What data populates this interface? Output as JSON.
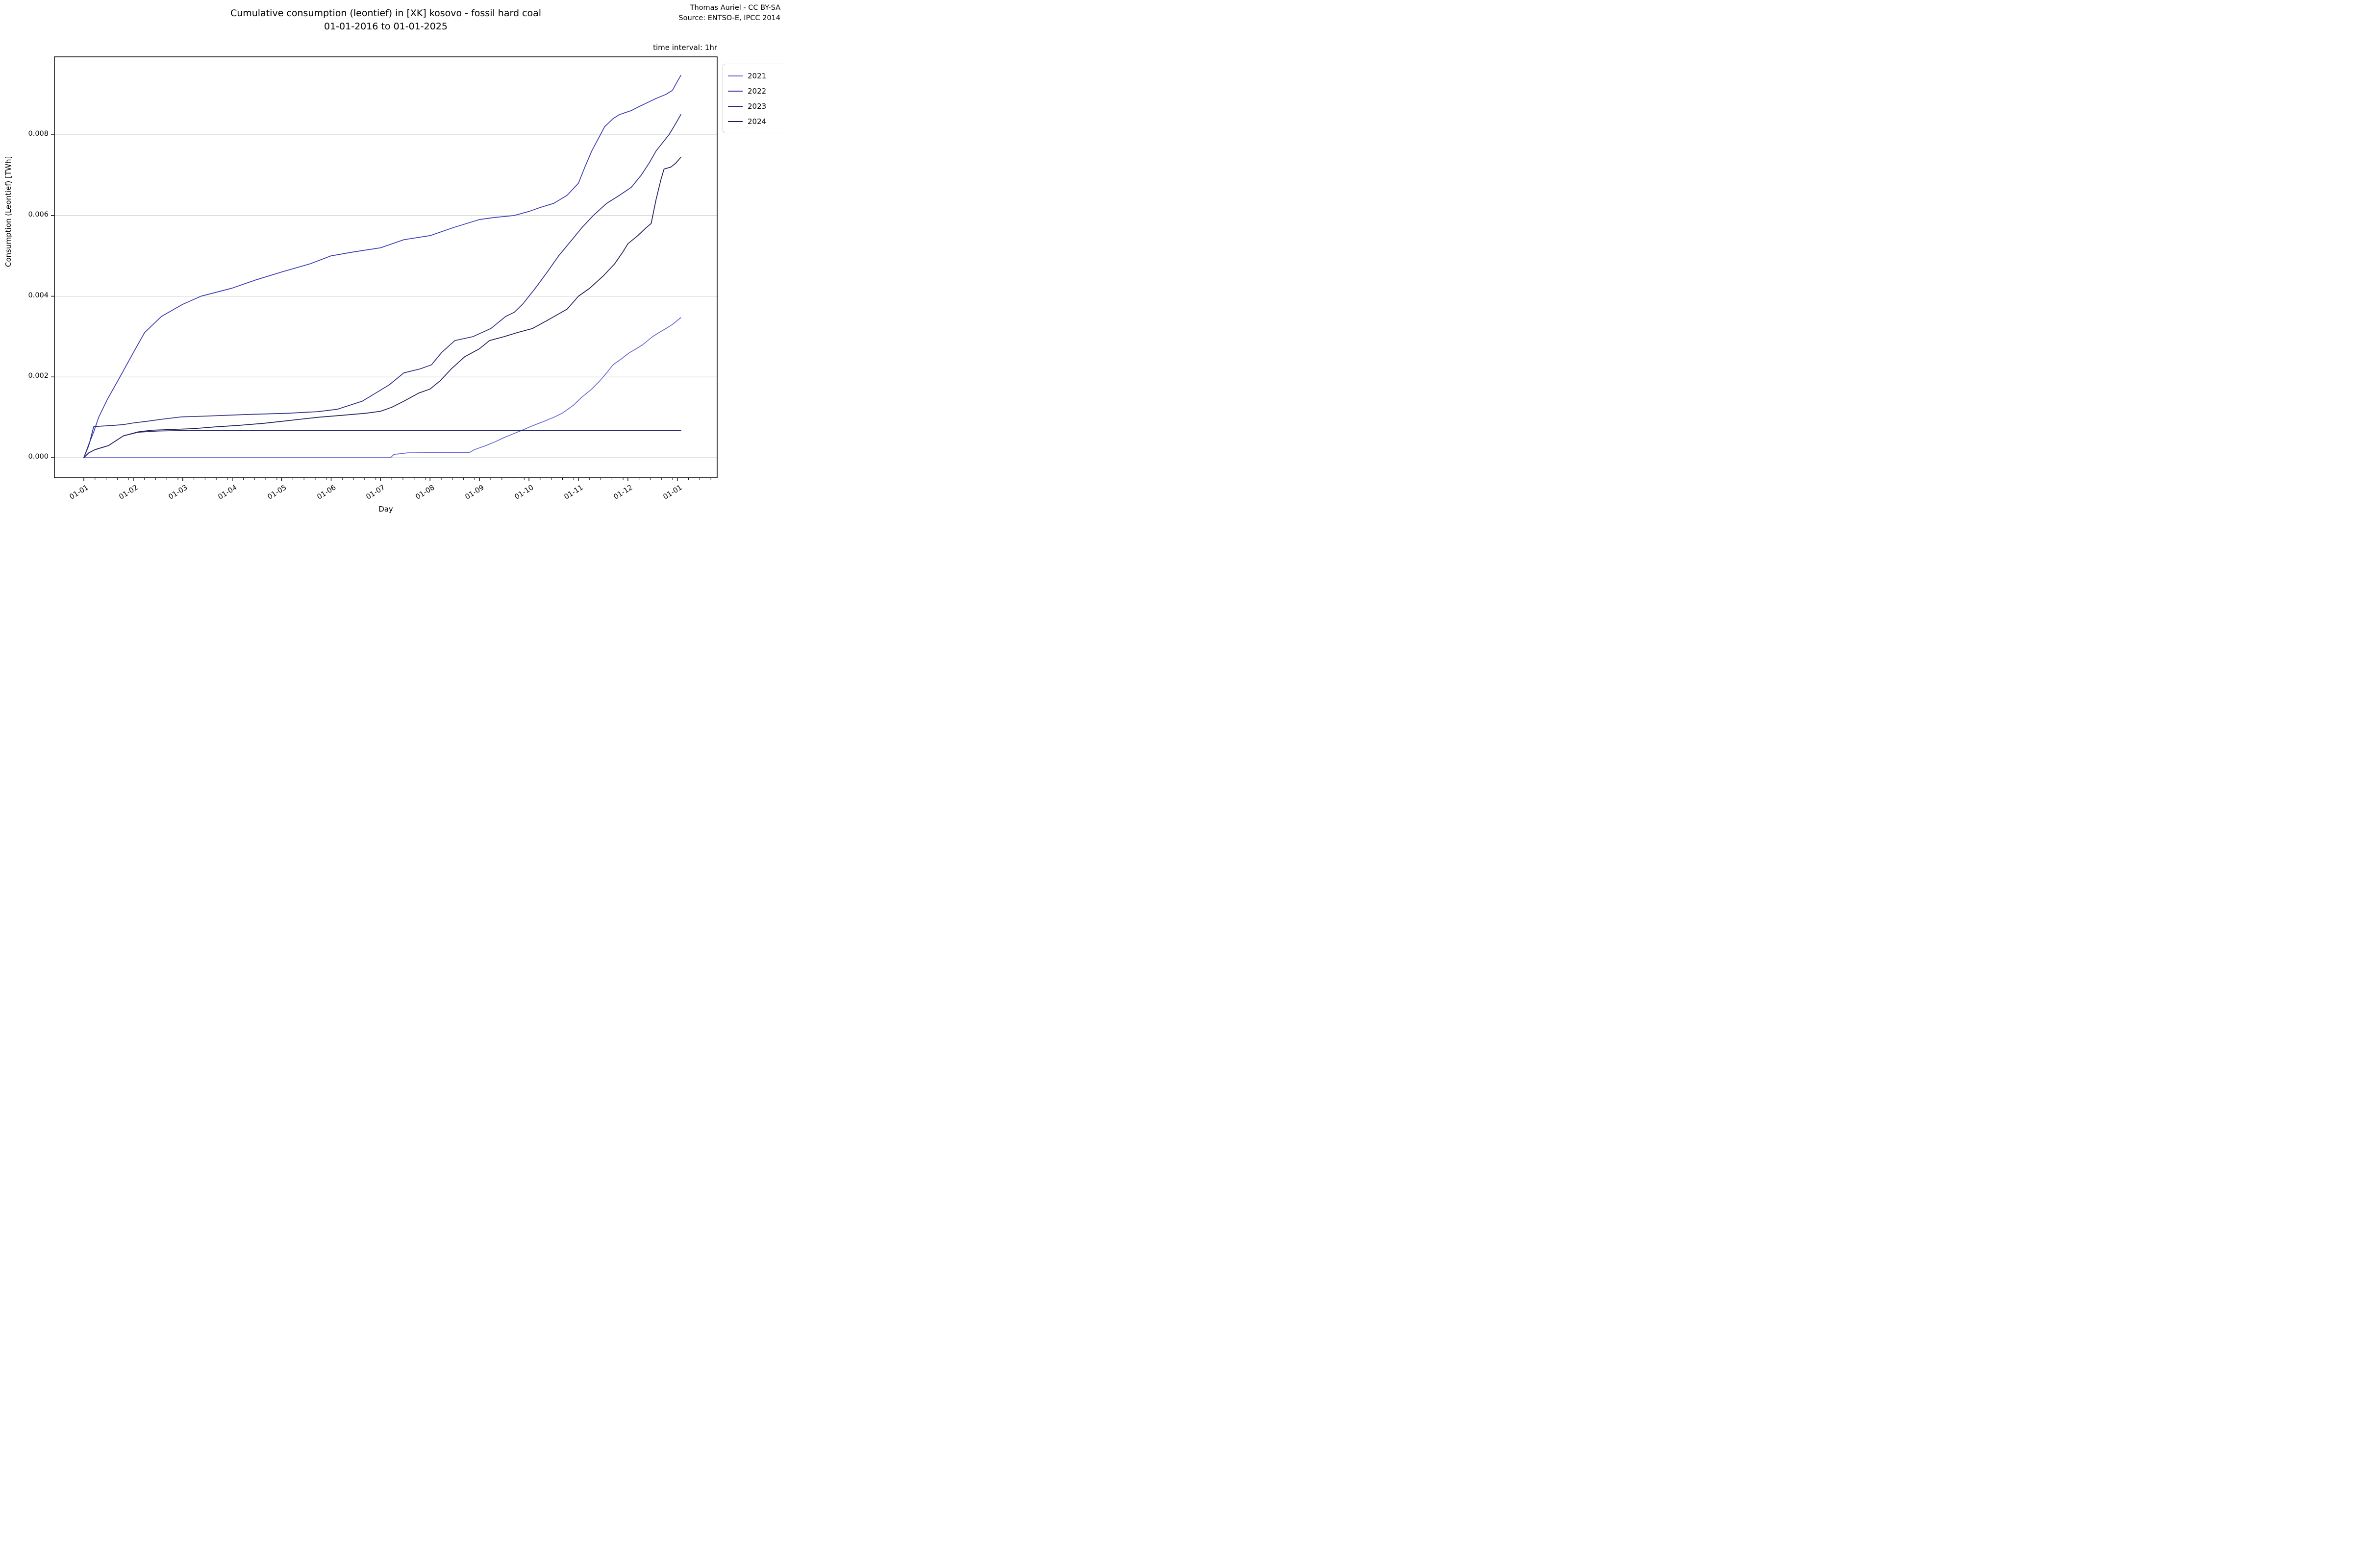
{
  "title": {
    "line1": "Cumulative consumption (leontief) in [XK] kosovo - fossil hard coal",
    "line2": "01-01-2016 to 01-01-2025"
  },
  "credit": {
    "line1": "Thomas Auriel - CC BY-SA",
    "line2": "Source: ENTSO-E, IPCC 2014"
  },
  "plot": {
    "time_interval_note": "time interval: 1hr",
    "x_axis_label": "Day",
    "y_axis_label": "Consumption (Leontief) [TWh]"
  },
  "legend": {
    "items": [
      {
        "label": "2021",
        "color": "#6a6ad4"
      },
      {
        "label": "2022",
        "color": "#383ab2"
      },
      {
        "label": "2023",
        "color": "#2b2d84"
      },
      {
        "label": "2024",
        "color": "#1d1e55"
      }
    ]
  },
  "chart_data": {
    "type": "line",
    "title": "Cumulative consumption (leontief) in [XK] kosovo - fossil hard coal 01-01-2016 to 01-01-2025",
    "xlabel": "Day",
    "ylabel": "Consumption (Leontief) [TWh]",
    "x_unit": "months_from_jan_1",
    "x_tick_labels": [
      "01-01",
      "01-02",
      "01-03",
      "01-04",
      "01-05",
      "01-06",
      "01-07",
      "01-08",
      "01-09",
      "01-10",
      "01-11",
      "01-12",
      "01-01"
    ],
    "y_ticks": [
      0.0,
      0.002,
      0.004,
      0.006,
      0.008
    ],
    "y_tick_labels": [
      "0.000",
      "0.002",
      "0.004",
      "0.006",
      "0.008"
    ],
    "ylim": [
      -0.00035,
      0.00995
    ],
    "xlim_months": [
      -0.58,
      12.73
    ],
    "grid": "horizontal",
    "legend_position": "outside-top-right",
    "grid_color": "#c9c9c9",
    "series": [
      {
        "name": "2021",
        "color": "#6a6ad4",
        "in_legend": true,
        "points": [
          [
            0,
            0
          ],
          [
            6.2,
            0
          ],
          [
            6.27,
            8e-05
          ],
          [
            6.55,
            0.00012
          ],
          [
            7.8,
            0.00013
          ],
          [
            7.9,
            0.0002
          ],
          [
            8.13,
            0.0003
          ],
          [
            8.33,
            0.0004
          ],
          [
            8.5,
            0.0005
          ],
          [
            8.7,
            0.0006
          ],
          [
            8.9,
            0.0007
          ],
          [
            9.03,
            0.00077
          ],
          [
            9.3,
            0.0009
          ],
          [
            9.5,
            0.001
          ],
          [
            9.67,
            0.0011
          ],
          [
            9.9,
            0.0013
          ],
          [
            10.07,
            0.0015
          ],
          [
            10.27,
            0.0017
          ],
          [
            10.43,
            0.0019
          ],
          [
            10.57,
            0.0021
          ],
          [
            10.7,
            0.0023
          ],
          [
            10.87,
            0.00245
          ],
          [
            11.03,
            0.0026
          ],
          [
            11.17,
            0.0027
          ],
          [
            11.3,
            0.0028
          ],
          [
            11.5,
            0.003
          ],
          [
            11.63,
            0.0031
          ],
          [
            11.77,
            0.0032
          ],
          [
            11.9,
            0.0033
          ],
          [
            12.07,
            0.00347
          ]
        ]
      },
      {
        "name": "2022",
        "color": "#383ab2",
        "in_legend": true,
        "points": [
          [
            0,
            0
          ],
          [
            0.1,
            0.00033
          ],
          [
            0.2,
            0.00064
          ],
          [
            0.3,
            0.001
          ],
          [
            0.47,
            0.00143
          ],
          [
            0.73,
            0.002
          ],
          [
            1.0,
            0.0026
          ],
          [
            1.23,
            0.0031
          ],
          [
            1.57,
            0.0035
          ],
          [
            2.0,
            0.0038
          ],
          [
            2.37,
            0.004
          ],
          [
            3.0,
            0.0042
          ],
          [
            3.47,
            0.0044
          ],
          [
            4.0,
            0.0046
          ],
          [
            4.57,
            0.0048
          ],
          [
            5.0,
            0.005
          ],
          [
            5.47,
            0.0051
          ],
          [
            6.0,
            0.0052
          ],
          [
            6.47,
            0.0054
          ],
          [
            7.0,
            0.0055
          ],
          [
            7.47,
            0.0057
          ],
          [
            8.0,
            0.0059
          ],
          [
            8.3,
            0.00595
          ],
          [
            8.7,
            0.006
          ],
          [
            9.0,
            0.0061
          ],
          [
            9.23,
            0.0062
          ],
          [
            9.5,
            0.0063
          ],
          [
            9.77,
            0.0065
          ],
          [
            10.0,
            0.0068
          ],
          [
            10.13,
            0.0072
          ],
          [
            10.27,
            0.0076
          ],
          [
            10.4,
            0.0079
          ],
          [
            10.53,
            0.0082
          ],
          [
            10.7,
            0.0084
          ],
          [
            10.83,
            0.0085
          ],
          [
            11.07,
            0.0086
          ],
          [
            11.23,
            0.0087
          ],
          [
            11.4,
            0.0088
          ],
          [
            11.57,
            0.0089
          ],
          [
            11.77,
            0.009
          ],
          [
            11.9,
            0.0091
          ],
          [
            11.99,
            0.0093
          ],
          [
            12.07,
            0.00947
          ]
        ]
      },
      {
        "name": "2023",
        "color": "#2b2d84",
        "in_legend": true,
        "points": [
          [
            0,
            0
          ],
          [
            0.1,
            0.0003
          ],
          [
            0.2,
            0.00077
          ],
          [
            0.6,
            0.0008
          ],
          [
            0.8,
            0.00082
          ],
          [
            1.0,
            0.00086
          ],
          [
            1.27,
            0.0009
          ],
          [
            1.57,
            0.00095
          ],
          [
            1.97,
            0.00101
          ],
          [
            2.47,
            0.00103
          ],
          [
            3.3,
            0.00107
          ],
          [
            4.13,
            0.0011
          ],
          [
            4.73,
            0.00114
          ],
          [
            5.13,
            0.0012
          ],
          [
            5.63,
            0.0014
          ],
          [
            5.9,
            0.0016
          ],
          [
            6.17,
            0.0018
          ],
          [
            6.47,
            0.0021
          ],
          [
            6.8,
            0.0022
          ],
          [
            7.03,
            0.0023
          ],
          [
            7.23,
            0.0026
          ],
          [
            7.5,
            0.0029
          ],
          [
            7.87,
            0.003
          ],
          [
            8.23,
            0.0032
          ],
          [
            8.53,
            0.0035
          ],
          [
            8.7,
            0.0036
          ],
          [
            8.87,
            0.0038
          ],
          [
            9.13,
            0.0042
          ],
          [
            9.37,
            0.0046
          ],
          [
            9.6,
            0.005
          ],
          [
            9.87,
            0.0054
          ],
          [
            10.07,
            0.0057
          ],
          [
            10.3,
            0.006
          ],
          [
            10.57,
            0.0063
          ],
          [
            10.83,
            0.0065
          ],
          [
            11.07,
            0.0067
          ],
          [
            11.27,
            0.007
          ],
          [
            11.43,
            0.0073
          ],
          [
            11.57,
            0.0076
          ],
          [
            11.7,
            0.0078
          ],
          [
            11.83,
            0.008
          ],
          [
            11.93,
            0.0082
          ],
          [
            12.07,
            0.0085
          ]
        ]
      },
      {
        "name": "2024",
        "color": "#1d1e55",
        "in_legend": true,
        "points": [
          [
            0,
            0
          ],
          [
            0.1,
            0.00012
          ],
          [
            0.23,
            0.0002
          ],
          [
            0.5,
            0.0003
          ],
          [
            0.8,
            0.00054
          ],
          [
            1.1,
            0.00064
          ],
          [
            1.37,
            0.00068
          ],
          [
            1.8,
            0.0007
          ],
          [
            2.23,
            0.00072
          ],
          [
            2.63,
            0.00076
          ],
          [
            3.13,
            0.0008
          ],
          [
            3.63,
            0.00085
          ],
          [
            4.0,
            0.0009
          ],
          [
            4.37,
            0.00095
          ],
          [
            4.73,
            0.001
          ],
          [
            5.23,
            0.00105
          ],
          [
            5.7,
            0.0011
          ],
          [
            6.0,
            0.00115
          ],
          [
            6.23,
            0.00125
          ],
          [
            6.47,
            0.0014
          ],
          [
            6.77,
            0.0016
          ],
          [
            7.0,
            0.0017
          ],
          [
            7.2,
            0.0019
          ],
          [
            7.43,
            0.0022
          ],
          [
            7.7,
            0.0025
          ],
          [
            8.0,
            0.0027
          ],
          [
            8.2,
            0.0029
          ],
          [
            8.5,
            0.003
          ],
          [
            8.77,
            0.0031
          ],
          [
            9.07,
            0.0032
          ],
          [
            9.37,
            0.0034
          ],
          [
            9.77,
            0.00368
          ],
          [
            10.0,
            0.004
          ],
          [
            10.23,
            0.0042
          ],
          [
            10.5,
            0.0045
          ],
          [
            10.73,
            0.0048
          ],
          [
            10.9,
            0.0051
          ],
          [
            11.0,
            0.0053
          ],
          [
            11.2,
            0.0055
          ],
          [
            11.37,
            0.0057
          ],
          [
            11.47,
            0.0058
          ],
          [
            11.57,
            0.0064
          ],
          [
            11.67,
            0.0069
          ],
          [
            11.73,
            0.00715
          ],
          [
            11.87,
            0.0072
          ],
          [
            11.97,
            0.0073
          ],
          [
            12.07,
            0.00744
          ]
        ]
      },
      {
        "name": "unlabeled-flat",
        "color": "#24256a",
        "in_legend": false,
        "points": [
          [
            0,
            0
          ],
          [
            0.1,
            0.00012
          ],
          [
            0.23,
            0.0002
          ],
          [
            0.5,
            0.0003
          ],
          [
            0.8,
            0.00054
          ],
          [
            1.1,
            0.00063
          ],
          [
            1.5,
            0.00066
          ],
          [
            1.9,
            0.00067
          ],
          [
            12.07,
            0.00067
          ]
        ]
      }
    ]
  }
}
